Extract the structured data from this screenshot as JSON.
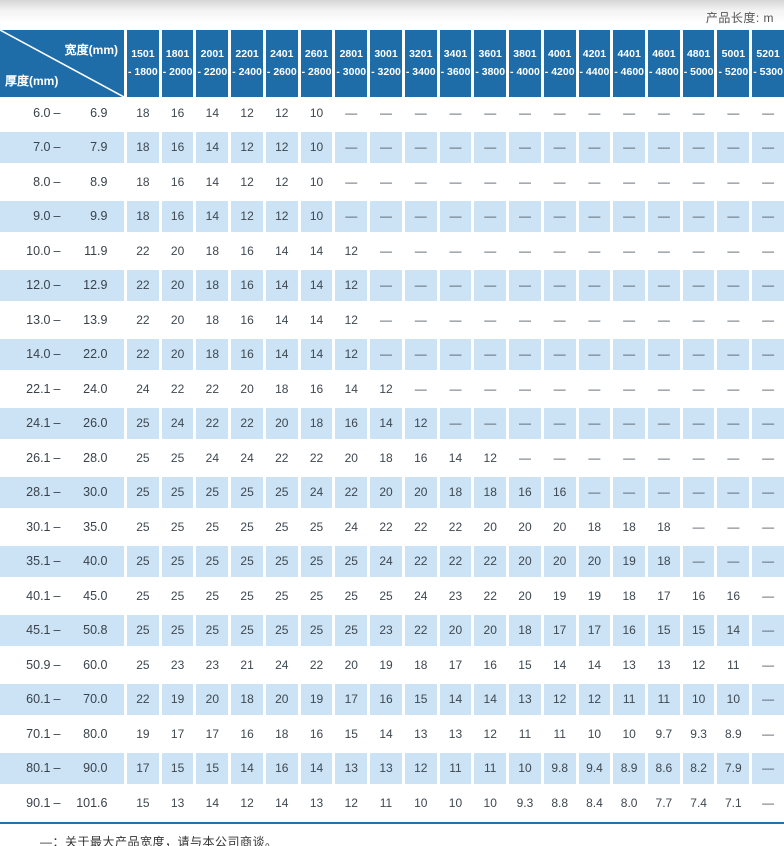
{
  "header": {
    "unit_note": "产品长度: m"
  },
  "table": {
    "corner": {
      "width_label": "宽度(mm)",
      "thickness_label": "厚度(mm)"
    },
    "range_sep": "–",
    "dash": "—",
    "columns": [
      {
        "l1": "1501",
        "l2": "- 1800"
      },
      {
        "l1": "1801",
        "l2": "- 2000"
      },
      {
        "l1": "2001",
        "l2": "- 2200"
      },
      {
        "l1": "2201",
        "l2": "- 2400"
      },
      {
        "l1": "2401",
        "l2": "- 2600"
      },
      {
        "l1": "2601",
        "l2": "- 2800"
      },
      {
        "l1": "2801",
        "l2": "- 3000"
      },
      {
        "l1": "3001",
        "l2": "- 3200"
      },
      {
        "l1": "3201",
        "l2": "- 3400"
      },
      {
        "l1": "3401",
        "l2": "- 3600"
      },
      {
        "l1": "3601",
        "l2": "- 3800"
      },
      {
        "l1": "3801",
        "l2": "- 4000"
      },
      {
        "l1": "4001",
        "l2": "- 4200"
      },
      {
        "l1": "4201",
        "l2": "- 4400"
      },
      {
        "l1": "4401",
        "l2": "- 4600"
      },
      {
        "l1": "4601",
        "l2": "- 4800"
      },
      {
        "l1": "4801",
        "l2": "- 5000"
      },
      {
        "l1": "5001",
        "l2": "- 5200"
      },
      {
        "l1": "5201",
        "l2": "- 5300"
      }
    ],
    "rows": [
      {
        "t1": "6.0",
        "t2": "6.9",
        "values": [
          "18",
          "16",
          "14",
          "12",
          "12",
          "10",
          "—",
          "—",
          "—",
          "—",
          "—",
          "—",
          "—",
          "—",
          "—",
          "—",
          "—",
          "—",
          "—"
        ]
      },
      {
        "t1": "7.0",
        "t2": "7.9",
        "values": [
          "18",
          "16",
          "14",
          "12",
          "12",
          "10",
          "—",
          "—",
          "—",
          "—",
          "—",
          "—",
          "—",
          "—",
          "—",
          "—",
          "—",
          "—",
          "—"
        ]
      },
      {
        "t1": "8.0",
        "t2": "8.9",
        "values": [
          "18",
          "16",
          "14",
          "12",
          "12",
          "10",
          "—",
          "—",
          "—",
          "—",
          "—",
          "—",
          "—",
          "—",
          "—",
          "—",
          "—",
          "—",
          "—"
        ]
      },
      {
        "t1": "9.0",
        "t2": "9.9",
        "values": [
          "18",
          "16",
          "14",
          "12",
          "12",
          "10",
          "—",
          "—",
          "—",
          "—",
          "—",
          "—",
          "—",
          "—",
          "—",
          "—",
          "—",
          "—",
          "—"
        ]
      },
      {
        "t1": "10.0",
        "t2": "11.9",
        "values": [
          "22",
          "20",
          "18",
          "16",
          "14",
          "14",
          "12",
          "—",
          "—",
          "—",
          "—",
          "—",
          "—",
          "—",
          "—",
          "—",
          "—",
          "—",
          "—"
        ]
      },
      {
        "t1": "12.0",
        "t2": "12.9",
        "values": [
          "22",
          "20",
          "18",
          "16",
          "14",
          "14",
          "12",
          "—",
          "—",
          "—",
          "—",
          "—",
          "—",
          "—",
          "—",
          "—",
          "—",
          "—",
          "—"
        ]
      },
      {
        "t1": "13.0",
        "t2": "13.9",
        "values": [
          "22",
          "20",
          "18",
          "16",
          "14",
          "14",
          "12",
          "—",
          "—",
          "—",
          "—",
          "—",
          "—",
          "—",
          "—",
          "—",
          "—",
          "—",
          "—"
        ]
      },
      {
        "t1": "14.0",
        "t2": "22.0",
        "values": [
          "22",
          "20",
          "18",
          "16",
          "14",
          "14",
          "12",
          "—",
          "—",
          "—",
          "—",
          "—",
          "—",
          "—",
          "—",
          "—",
          "—",
          "—",
          "—"
        ]
      },
      {
        "t1": "22.1",
        "t2": "24.0",
        "values": [
          "24",
          "22",
          "22",
          "20",
          "18",
          "16",
          "14",
          "12",
          "—",
          "—",
          "—",
          "—",
          "—",
          "—",
          "—",
          "—",
          "—",
          "—",
          "—"
        ]
      },
      {
        "t1": "24.1",
        "t2": "26.0",
        "values": [
          "25",
          "24",
          "22",
          "22",
          "20",
          "18",
          "16",
          "14",
          "12",
          "—",
          "—",
          "—",
          "—",
          "—",
          "—",
          "—",
          "—",
          "—",
          "—"
        ]
      },
      {
        "t1": "26.1",
        "t2": "28.0",
        "values": [
          "25",
          "25",
          "24",
          "24",
          "22",
          "22",
          "20",
          "18",
          "16",
          "14",
          "12",
          "—",
          "—",
          "—",
          "—",
          "—",
          "—",
          "—",
          "—"
        ]
      },
      {
        "t1": "28.1",
        "t2": "30.0",
        "values": [
          "25",
          "25",
          "25",
          "25",
          "25",
          "24",
          "22",
          "20",
          "20",
          "18",
          "18",
          "16",
          "16",
          "—",
          "—",
          "—",
          "—",
          "—",
          "—"
        ]
      },
      {
        "t1": "30.1",
        "t2": "35.0",
        "values": [
          "25",
          "25",
          "25",
          "25",
          "25",
          "25",
          "24",
          "22",
          "22",
          "22",
          "20",
          "20",
          "20",
          "18",
          "18",
          "18",
          "—",
          "—",
          "—"
        ]
      },
      {
        "t1": "35.1",
        "t2": "40.0",
        "values": [
          "25",
          "25",
          "25",
          "25",
          "25",
          "25",
          "25",
          "24",
          "22",
          "22",
          "22",
          "20",
          "20",
          "20",
          "19",
          "18",
          "—",
          "—",
          "—"
        ]
      },
      {
        "t1": "40.1",
        "t2": "45.0",
        "values": [
          "25",
          "25",
          "25",
          "25",
          "25",
          "25",
          "25",
          "25",
          "24",
          "23",
          "22",
          "20",
          "19",
          "19",
          "18",
          "17",
          "16",
          "16",
          "—"
        ]
      },
      {
        "t1": "45.1",
        "t2": "50.8",
        "values": [
          "25",
          "25",
          "25",
          "25",
          "25",
          "25",
          "25",
          "23",
          "22",
          "20",
          "20",
          "18",
          "17",
          "17",
          "16",
          "15",
          "15",
          "14",
          "—"
        ]
      },
      {
        "t1": "50.9",
        "t2": "60.0",
        "values": [
          "25",
          "23",
          "23",
          "21",
          "24",
          "22",
          "20",
          "19",
          "18",
          "17",
          "16",
          "15",
          "14",
          "14",
          "13",
          "13",
          "12",
          "11",
          "—"
        ]
      },
      {
        "t1": "60.1",
        "t2": "70.0",
        "values": [
          "22",
          "19",
          "20",
          "18",
          "20",
          "19",
          "17",
          "16",
          "15",
          "14",
          "14",
          "13",
          "12",
          "12",
          "11",
          "11",
          "10",
          "10",
          "—"
        ]
      },
      {
        "t1": "70.1",
        "t2": "80.0",
        "values": [
          "19",
          "17",
          "17",
          "16",
          "18",
          "16",
          "15",
          "14",
          "13",
          "13",
          "12",
          "11",
          "11",
          "10",
          "10",
          "9.7",
          "9.3",
          "8.9",
          "—"
        ]
      },
      {
        "t1": "80.1",
        "t2": "90.0",
        "values": [
          "17",
          "15",
          "15",
          "14",
          "16",
          "14",
          "13",
          "13",
          "12",
          "11",
          "11",
          "10",
          "9.8",
          "9.4",
          "8.9",
          "8.6",
          "8.2",
          "7.9",
          "—"
        ]
      },
      {
        "t1": "90.1",
        "t2": "101.6",
        "values": [
          "15",
          "13",
          "14",
          "12",
          "14",
          "13",
          "12",
          "11",
          "10",
          "10",
          "10",
          "9.3",
          "8.8",
          "8.4",
          "8.0",
          "7.7",
          "7.4",
          "7.1",
          "—"
        ]
      }
    ]
  },
  "footer": {
    "note": "—：关于最大产品宽度，请与本公司商谈。"
  },
  "colors": {
    "header_bg": "#1f6da8",
    "row_alt_bg": "#cbe3f5",
    "rule": "#2273a9"
  }
}
